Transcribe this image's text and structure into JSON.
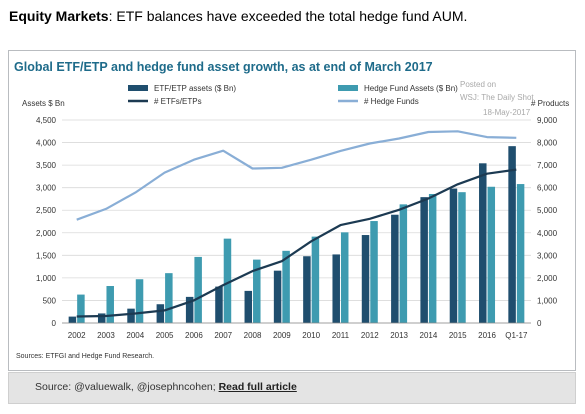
{
  "headline": {
    "bold": "Equity Markets",
    "rest": ": ETF balances have exceeded the total hedge fund AUM."
  },
  "watermark": [
    "Posted on",
    "WSJ: The Daily Shot",
    "18-May-2017"
  ],
  "footer": {
    "prefix": "Source: @valuewalk, @josephncohen; ",
    "link": "Read full article"
  },
  "chart_data": {
    "type": "bar+line",
    "title": "Global ETF/ETP and hedge fund asset growth, as at end of March 2017",
    "ylabel_left": "Assets $ Bn",
    "ylabel_right": "# Products",
    "source": "Sources: ETFGI and Hedge Fund Research.",
    "categories": [
      "2002",
      "2003",
      "2004",
      "2005",
      "2006",
      "2007",
      "2008",
      "2009",
      "2010",
      "2011",
      "2012",
      "2013",
      "2014",
      "2015",
      "2016",
      "Q1-17"
    ],
    "ylim_left": [
      0,
      4500
    ],
    "yticks_left": [
      0,
      500,
      1000,
      1500,
      2000,
      2500,
      3000,
      3500,
      4000,
      4500
    ],
    "yticks_left_labels": [
      "0",
      "500",
      "1,000",
      "1,500",
      "2,000",
      "2,500",
      "3,000",
      "3,500",
      "4,000",
      "4,500"
    ],
    "ylim_right": [
      0,
      9000
    ],
    "yticks_right": [
      0,
      1000,
      2000,
      3000,
      4000,
      5000,
      6000,
      7000,
      8000,
      9000
    ],
    "yticks_right_labels": [
      "0",
      "1,000",
      "2,000",
      "3,000",
      "4,000",
      "5,000",
      "6,000",
      "7,000",
      "8,000",
      "9,000"
    ],
    "grid": true,
    "legend_position": "top",
    "colors": {
      "etf_bar": "#1f4e6e",
      "hf_bar": "#3e9bb0",
      "etf_line": "#1c3a52",
      "hf_line": "#89aed6",
      "title": "#1e6b8a"
    },
    "series": [
      {
        "name": "ETF/ETP assets ($ Bn)",
        "kind": "bar",
        "axis": "left",
        "values": [
          142,
          212,
          318,
          416,
          579,
          807,
          712,
          1160,
          1480,
          1520,
          1950,
          2400,
          2790,
          2980,
          3540,
          3920
        ]
      },
      {
        "name": "Hedge Fund Assets ($ Bn)",
        "kind": "bar",
        "axis": "left",
        "values": [
          630,
          820,
          970,
          1105,
          1465,
          1870,
          1405,
          1600,
          1915,
          2010,
          2260,
          2630,
          2860,
          2900,
          3020,
          3080
        ]
      },
      {
        "name": "# ETFs/ETPs",
        "kind": "line",
        "axis": "right",
        "values": [
          290,
          310,
          420,
          560,
          1000,
          1680,
          2300,
          2740,
          3620,
          4340,
          4620,
          5020,
          5520,
          6150,
          6620,
          6800
        ]
      },
      {
        "name": "# Hedge Funds",
        "kind": "line",
        "axis": "right",
        "values": [
          4580,
          5060,
          5780,
          6670,
          7240,
          7640,
          6850,
          6880,
          7240,
          7630,
          7960,
          8180,
          8470,
          8500,
          8240,
          8210
        ]
      }
    ]
  }
}
